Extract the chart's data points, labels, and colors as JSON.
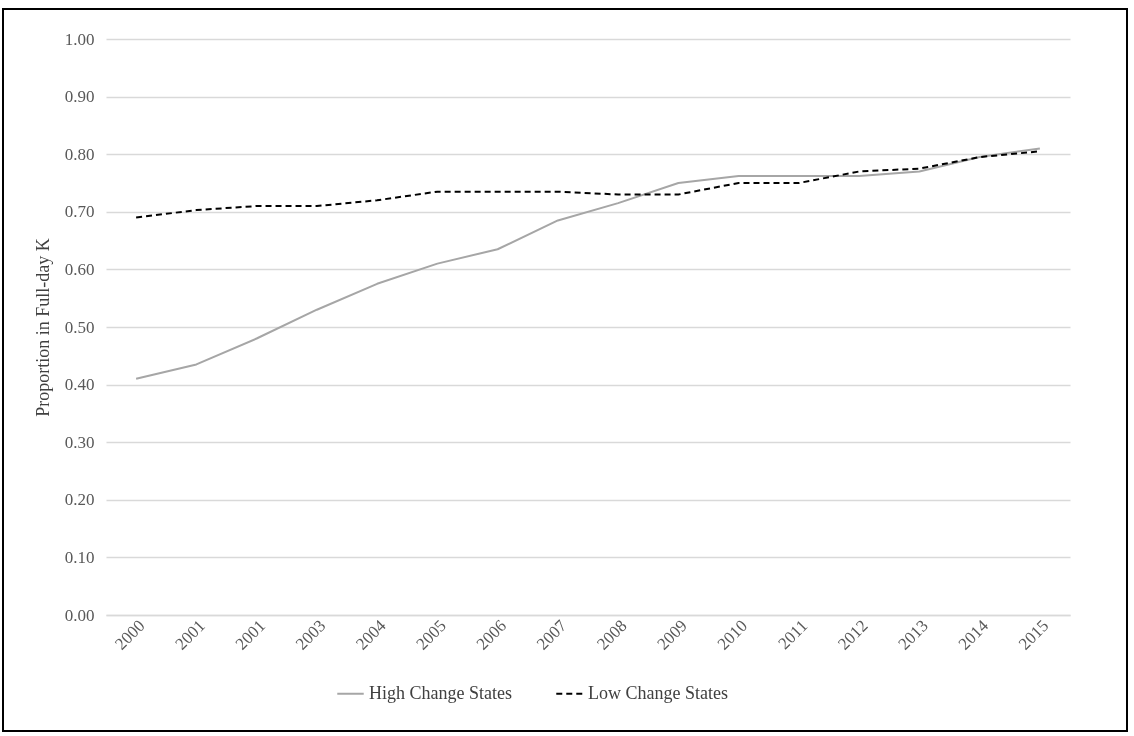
{
  "chart_data": {
    "type": "line",
    "ylabel": "Proportion in Full-day K",
    "categories": [
      "2000",
      "2001",
      "2001",
      "2003",
      "2004",
      "2005",
      "2006",
      "2007",
      "2008",
      "2009",
      "2010",
      "2011",
      "2012",
      "2013",
      "2014",
      "2015"
    ],
    "series": [
      {
        "name": "High Change States",
        "color": "#a6a6a6",
        "line_style": "solid",
        "values": [
          0.41,
          0.435,
          0.48,
          0.53,
          0.575,
          0.61,
          0.635,
          0.685,
          0.715,
          0.75,
          0.762,
          0.762,
          0.762,
          0.77,
          0.795,
          0.81
        ]
      },
      {
        "name": "Low Change States",
        "color": "#000000",
        "line_style": "dashed",
        "values": [
          0.69,
          0.703,
          0.71,
          0.71,
          0.72,
          0.735,
          0.735,
          0.735,
          0.73,
          0.73,
          0.75,
          0.75,
          0.77,
          0.775,
          0.795,
          0.805
        ]
      }
    ],
    "ylim": [
      0,
      1
    ],
    "yticks": [
      {
        "value": 0,
        "label": "0.00"
      },
      {
        "value": 0.1,
        "label": "0.10"
      },
      {
        "value": 0.2,
        "label": "0.20"
      },
      {
        "value": 0.3,
        "label": "0.30"
      },
      {
        "value": 0.4,
        "label": "0.40"
      },
      {
        "value": 0.5,
        "label": "0.50"
      },
      {
        "value": 0.6,
        "label": "0.60"
      },
      {
        "value": 0.7,
        "label": "0.70"
      },
      {
        "value": 0.8,
        "label": "0.80"
      },
      {
        "value": 0.9,
        "label": "0.90"
      },
      {
        "value": 1,
        "label": "1.00"
      }
    ],
    "grid": "y",
    "legend": "bottom",
    "marker": "none"
  }
}
